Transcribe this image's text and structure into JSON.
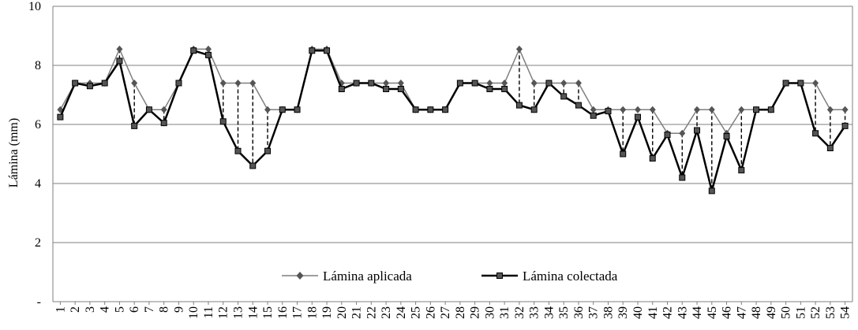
{
  "chart_data": {
    "type": "line",
    "title": "",
    "xlabel": "",
    "ylabel": "Lámina (mm)",
    "ylim": [
      0,
      10
    ],
    "y_ticks": [
      "-",
      "2",
      "4",
      "6",
      "8",
      "10"
    ],
    "grid": "horizontal",
    "legend_position": "bottom-center",
    "categories": [
      "1",
      "2",
      "3",
      "4",
      "5",
      "6",
      "7",
      "8",
      "9",
      "10",
      "11",
      "12",
      "13",
      "14",
      "15",
      "16",
      "17",
      "18",
      "19",
      "20",
      "21",
      "22",
      "23",
      "24",
      "25",
      "26",
      "27",
      "28",
      "29",
      "30",
      "31",
      "32",
      "33",
      "34",
      "35",
      "36",
      "37",
      "38",
      "39",
      "40",
      "41",
      "42",
      "43",
      "44",
      "45",
      "46",
      "47",
      "48",
      "49",
      "50",
      "51",
      "52",
      "53",
      "54"
    ],
    "series": [
      {
        "name": "Lámina aplicada",
        "marker": "diamond",
        "color": "#7f7f7f",
        "values": [
          6.5,
          7.4,
          7.4,
          7.4,
          8.55,
          7.4,
          6.5,
          6.5,
          7.4,
          8.55,
          8.55,
          7.4,
          7.4,
          7.4,
          6.5,
          6.5,
          6.5,
          8.55,
          8.55,
          7.4,
          7.4,
          7.4,
          7.4,
          7.4,
          6.5,
          6.5,
          6.5,
          7.4,
          7.4,
          7.4,
          7.4,
          8.55,
          7.4,
          7.4,
          7.4,
          7.4,
          6.5,
          6.5,
          6.5,
          6.5,
          6.5,
          5.7,
          5.7,
          6.5,
          6.5,
          5.7,
          6.5,
          6.5,
          6.5,
          7.4,
          7.4,
          7.4,
          6.5,
          6.5
        ]
      },
      {
        "name": "Lámina colectada",
        "marker": "square",
        "color": "#000000",
        "values": [
          6.25,
          7.4,
          7.3,
          7.4,
          8.15,
          5.95,
          6.5,
          6.05,
          7.4,
          8.5,
          8.35,
          6.1,
          5.1,
          4.6,
          5.1,
          6.5,
          6.5,
          8.5,
          8.5,
          7.2,
          7.4,
          7.4,
          7.2,
          7.2,
          6.5,
          6.5,
          6.5,
          7.4,
          7.4,
          7.2,
          7.2,
          6.65,
          6.5,
          7.4,
          6.95,
          6.65,
          6.3,
          6.45,
          5.0,
          6.25,
          4.85,
          5.65,
          4.2,
          5.8,
          3.75,
          5.6,
          4.45,
          6.5,
          6.5,
          7.4,
          7.4,
          5.7,
          5.2,
          5.95
        ]
      }
    ]
  }
}
